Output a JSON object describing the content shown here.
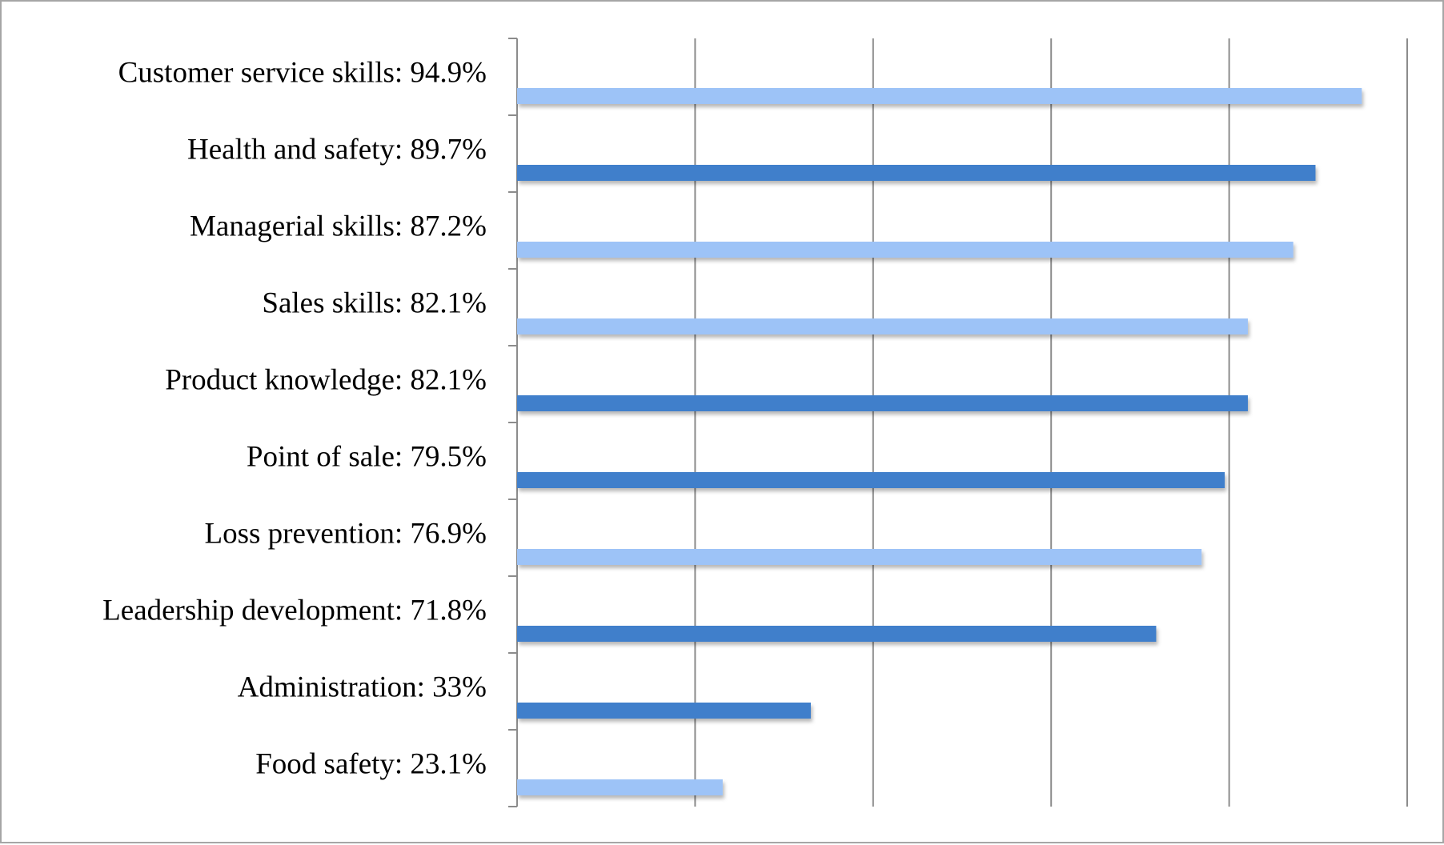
{
  "chart_data": {
    "type": "bar",
    "orientation": "horizontal",
    "title": "",
    "xlabel": "",
    "ylabel": "",
    "xlim": [
      0,
      100
    ],
    "grid": "vertical",
    "legend": "none",
    "categories": [
      "Customer service skills: 94.9%",
      "Health and safety: 89.7%",
      "Managerial skills: 87.2%",
      "Sales skills: 82.1%",
      "Product knowledge: 82.1%",
      "Point of sale: 79.5%",
      "Loss prevention: 76.9%",
      "Leadership development: 71.8%",
      "Administration: 33%",
      "Food safety: 23.1%"
    ],
    "values": [
      94.9,
      89.7,
      87.2,
      82.1,
      82.1,
      79.5,
      76.9,
      71.8,
      33,
      23.1
    ],
    "bar_colors": [
      "#9dc3f7",
      "#3f7fcb",
      "#9dc3f7",
      "#9dc3f7",
      "#3f7fcb",
      "#3f7fcb",
      "#9dc3f7",
      "#3f7fcb",
      "#3f7fcb",
      "#9dc3f7"
    ]
  }
}
